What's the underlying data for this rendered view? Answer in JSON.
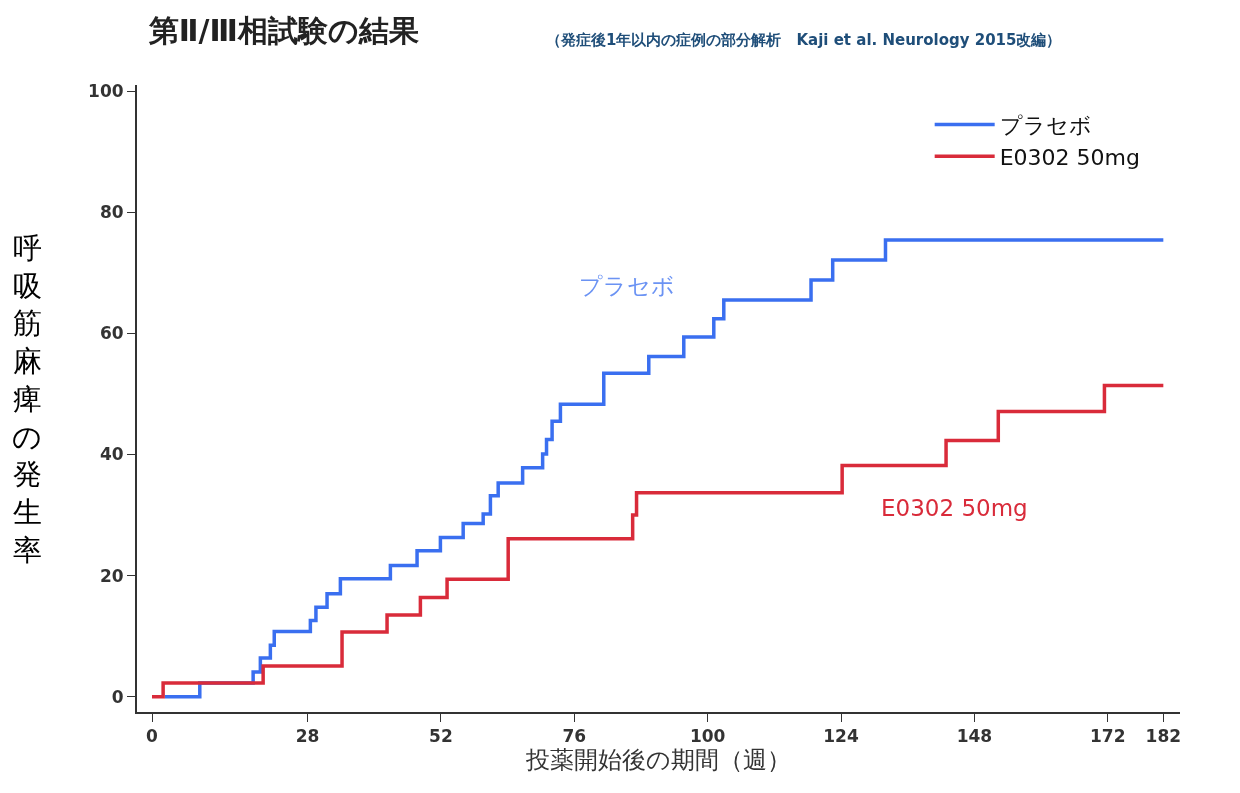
{
  "chart_data": {
    "type": "step",
    "title": "第Ⅱ/Ⅲ相試験の結果",
    "subtitle": "（発症後1年以内の症例の部分解析　Kaji et al. Neurology 2015改編）",
    "xlabel": "投薬開始後の期間（週）",
    "ylabel": "呼吸筋麻痺の発生率",
    "series": [
      {
        "name": "プラセボ",
        "color": "#3a6ff0",
        "x": [
          2.3,
          8.6,
          18.2,
          19.5,
          21.3,
          22,
          28.5,
          29.5,
          31.5,
          33.9,
          42.9,
          47.7,
          51.9,
          56,
          59.6,
          60.9,
          62.3,
          66.7,
          70.3,
          71,
          72,
          73.5,
          81.3,
          89.4,
          95.7,
          101.1,
          102.9,
          118.6,
          122.5,
          132,
          182
        ],
        "values": [
          0,
          2.3,
          4.1,
          6.4,
          8.5,
          10.8,
          12.6,
          14.8,
          17,
          19.5,
          21.7,
          24.1,
          26.3,
          28.6,
          30.2,
          33.2,
          35.3,
          37.8,
          40.1,
          42.5,
          45.5,
          48.3,
          53.4,
          56.2,
          59.4,
          62.4,
          65.5,
          68.8,
          72.1,
          75.4,
          75.4
        ]
      },
      {
        "name": "E0302 50mg",
        "color": "#d92b3a",
        "x": [
          0,
          2,
          20,
          34.2,
          42.3,
          48.3,
          53.1,
          64.1,
          86.5,
          87.2,
          124.2,
          142.9,
          152.3,
          171.4,
          182
        ],
        "values": [
          0,
          2.3,
          5.1,
          10.7,
          13.5,
          16.4,
          19.4,
          26.1,
          30,
          33.7,
          38.2,
          42.3,
          47.1,
          51.4,
          51.4
        ]
      }
    ],
    "annotations": [
      "プラセボ",
      "E0302 50mg"
    ],
    "xlim": [
      -2.7,
      185
    ],
    "ylim": [
      -2.5,
      101
    ],
    "xticks": [
      0,
      28,
      52,
      76,
      100,
      124,
      148,
      172,
      182
    ],
    "yticks": [
      0,
      20,
      40,
      60,
      80,
      100
    ],
    "grid": false,
    "legend": "top right",
    "line_style": "solid",
    "marker": "none"
  }
}
